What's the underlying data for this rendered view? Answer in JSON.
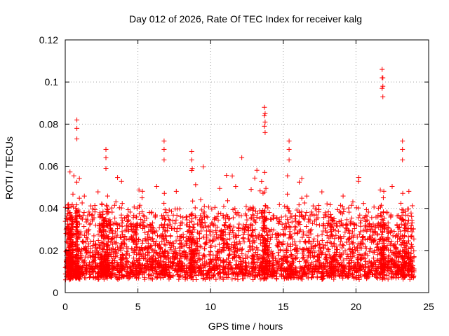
{
  "chart_data": {
    "type": "scatter",
    "title": "Day 012 of 2026, Rate Of TEC Index for receiver kalg",
    "xlabel": "GPS time / hours",
    "ylabel": "ROTI / TECUs",
    "xlim": [
      0,
      25
    ],
    "ylim": [
      0,
      0.12
    ],
    "xticks": [
      "0",
      "5",
      "10",
      "15",
      "20",
      "25"
    ],
    "yticks": [
      "0",
      "0.02",
      "0.04",
      "0.06",
      "0.08",
      "0.1",
      "0.12"
    ],
    "grid": true,
    "marker": "plus",
    "color": "#ff0000",
    "series": [
      {
        "name": "ROTI",
        "x": [
          0.1,
          0.2,
          0.25,
          0.3,
          0.35,
          0.4,
          0.45,
          0.5,
          0.8,
          0.82,
          0.85,
          0.9,
          1.2,
          1.5,
          1.8,
          2.0,
          2.3,
          2.5,
          2.6,
          2.7,
          2.8,
          2.9,
          3.0,
          3.2,
          3.5,
          3.8,
          4.0,
          4.3,
          4.6,
          4.8,
          5.0,
          5.2,
          5.5,
          5.8,
          6.0,
          6.3,
          6.6,
          6.8,
          6.9,
          7.2,
          7.5,
          7.8,
          8.0,
          8.3,
          8.6,
          8.7,
          8.75,
          9.0,
          9.3,
          9.6,
          9.9,
          10.2,
          10.5,
          10.8,
          11.0,
          11.3,
          11.6,
          11.9,
          12.2,
          12.5,
          12.8,
          13.0,
          13.3,
          13.6,
          13.7,
          13.75,
          13.8,
          14.0,
          14.3,
          14.6,
          14.9,
          15.2,
          15.4,
          15.6,
          15.9,
          16.2,
          16.5,
          16.8,
          17.1,
          17.4,
          17.7,
          18.0,
          18.3,
          18.4,
          18.6,
          18.9,
          19.2,
          19.5,
          19.8,
          20.1,
          20.4,
          20.7,
          21.0,
          21.3,
          21.6,
          21.8,
          21.85,
          21.9,
          22.2,
          22.5,
          22.8,
          23.0,
          23.2,
          23.3,
          23.5,
          23.7,
          23.9
        ]
      }
    ]
  }
}
